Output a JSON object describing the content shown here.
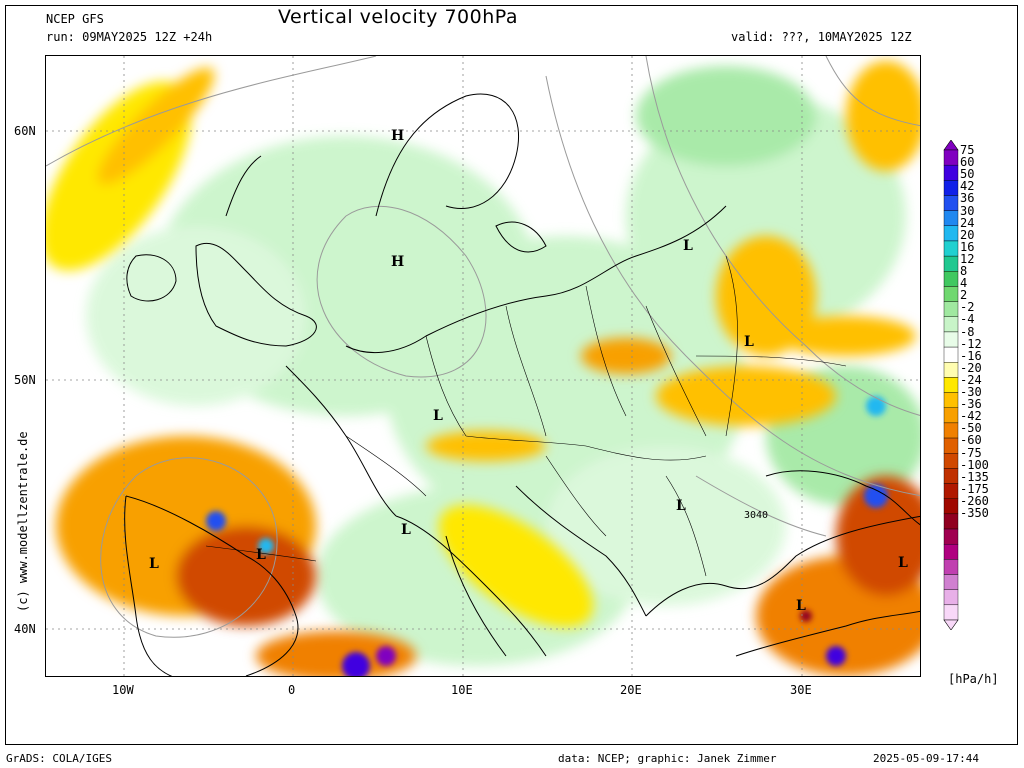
{
  "header": {
    "model": "NCEP GFS",
    "run": "run: 09MAY2025 12Z +24h",
    "title": "Vertical velocity 700hPa",
    "valid": "valid: ???, 10MAY2025 12Z"
  },
  "map": {
    "lat_labels": [
      "60N",
      "50N",
      "40N"
    ],
    "lon_labels": [
      "10W",
      "0",
      "10E",
      "20E",
      "30E"
    ],
    "pressure_centers": [
      {
        "label": "H"
      },
      {
        "label": "H"
      },
      {
        "label": "L"
      },
      {
        "label": "L"
      },
      {
        "label": "L"
      },
      {
        "label": "L"
      },
      {
        "label": "L"
      },
      {
        "label": "L"
      },
      {
        "label": "L"
      },
      {
        "label": "L"
      },
      {
        "label": "L"
      }
    ],
    "contour_label": "3040",
    "watermark": "(c) www.modellzentrale.de"
  },
  "colorbar": {
    "unit": "[hPa/h]",
    "levels": [
      "75",
      "60",
      "50",
      "42",
      "36",
      "30",
      "24",
      "20",
      "16",
      "12",
      "8",
      "4",
      "2",
      "-2",
      "-4",
      "-8",
      "-12",
      "-16",
      "-20",
      "-24",
      "-30",
      "-36",
      "-42",
      "-50",
      "-60",
      "-75",
      "-100",
      "-135",
      "-175",
      "-260",
      "-350"
    ],
    "colors": [
      "#8000c0",
      "#4000e0",
      "#1020e8",
      "#2050f0",
      "#2088f0",
      "#20b8f0",
      "#20d0d0",
      "#20c890",
      "#40c860",
      "#70d870",
      "#a0e8a0",
      "#c8f4c8",
      "#e8fce8",
      "#ffffff",
      "#fffdb0",
      "#ffe800",
      "#ffc000",
      "#f8a000",
      "#f08000",
      "#e06000",
      "#d04800",
      "#c03000",
      "#b01800",
      "#a00800",
      "#900020",
      "#a00050",
      "#b00080",
      "#c040b0",
      "#d080d0",
      "#e8b0e8",
      "#f8d8f8"
    ]
  },
  "footer": {
    "left": "GrADS: COLA/IGES",
    "middle": "data: NCEP; graphic: Janek Zimmer",
    "right": "2025-05-09-17:44"
  }
}
